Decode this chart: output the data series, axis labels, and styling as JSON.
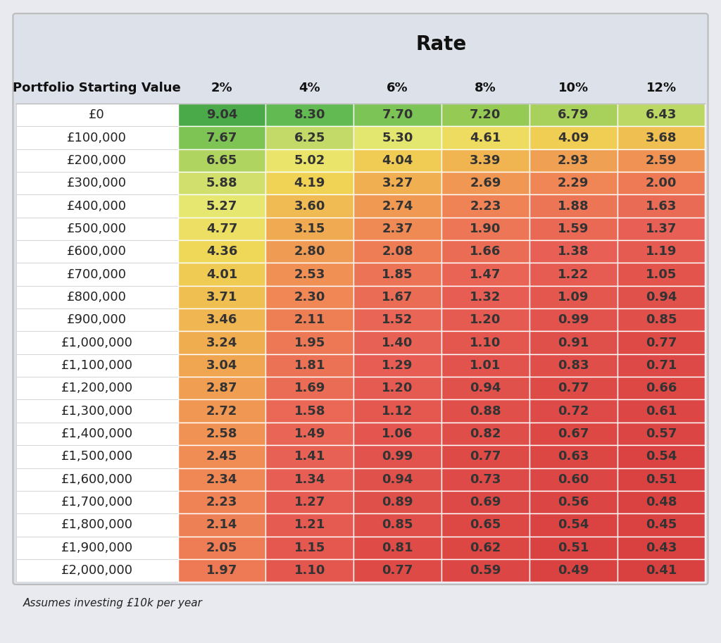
{
  "title": "Rate",
  "subtitle": "Assumes investing £10k per year",
  "col_header_label": "Portfolio Starting Value",
  "col_headers": [
    "2%",
    "4%",
    "6%",
    "8%",
    "10%",
    "12%"
  ],
  "row_labels": [
    "£0",
    "£100,000",
    "£200,000",
    "£300,000",
    "£400,000",
    "£500,000",
    "£600,000",
    "£700,000",
    "£800,000",
    "£900,000",
    "£1,000,000",
    "£1,100,000",
    "£1,200,000",
    "£1,300,000",
    "£1,400,000",
    "£1,500,000",
    "£1,600,000",
    "£1,700,000",
    "£1,800,000",
    "£1,900,000",
    "£2,000,000"
  ],
  "data": [
    [
      9.04,
      8.3,
      7.7,
      7.2,
      6.79,
      6.43
    ],
    [
      7.67,
      6.25,
      5.3,
      4.61,
      4.09,
      3.68
    ],
    [
      6.65,
      5.02,
      4.04,
      3.39,
      2.93,
      2.59
    ],
    [
      5.88,
      4.19,
      3.27,
      2.69,
      2.29,
      2.0
    ],
    [
      5.27,
      3.6,
      2.74,
      2.23,
      1.88,
      1.63
    ],
    [
      4.77,
      3.15,
      2.37,
      1.9,
      1.59,
      1.37
    ],
    [
      4.36,
      2.8,
      2.08,
      1.66,
      1.38,
      1.19
    ],
    [
      4.01,
      2.53,
      1.85,
      1.47,
      1.22,
      1.05
    ],
    [
      3.71,
      2.3,
      1.67,
      1.32,
      1.09,
      0.94
    ],
    [
      3.46,
      2.11,
      1.52,
      1.2,
      0.99,
      0.85
    ],
    [
      3.24,
      1.95,
      1.4,
      1.1,
      0.91,
      0.77
    ],
    [
      3.04,
      1.81,
      1.29,
      1.01,
      0.83,
      0.71
    ],
    [
      2.87,
      1.69,
      1.2,
      0.94,
      0.77,
      0.66
    ],
    [
      2.72,
      1.58,
      1.12,
      0.88,
      0.72,
      0.61
    ],
    [
      2.58,
      1.49,
      1.06,
      0.82,
      0.67,
      0.57
    ],
    [
      2.45,
      1.41,
      0.99,
      0.77,
      0.63,
      0.54
    ],
    [
      2.34,
      1.34,
      0.94,
      0.73,
      0.6,
      0.51
    ],
    [
      2.23,
      1.27,
      0.89,
      0.69,
      0.56,
      0.48
    ],
    [
      2.14,
      1.21,
      0.85,
      0.65,
      0.54,
      0.45
    ],
    [
      2.05,
      1.15,
      0.81,
      0.62,
      0.51,
      0.43
    ],
    [
      1.97,
      1.1,
      0.77,
      0.59,
      0.49,
      0.41
    ]
  ],
  "bg_color": "#e8eaf0",
  "header_bg_color": "#dde1ea",
  "text_color": "#222222",
  "header_text_color": "#111111",
  "cell_text_color": "#333333",
  "vmin": 0.41,
  "vmax": 9.04,
  "title_fontsize": 20,
  "header_fontsize": 13,
  "cell_fontsize": 13,
  "row_label_fontsize": 13,
  "note_fontsize": 11
}
